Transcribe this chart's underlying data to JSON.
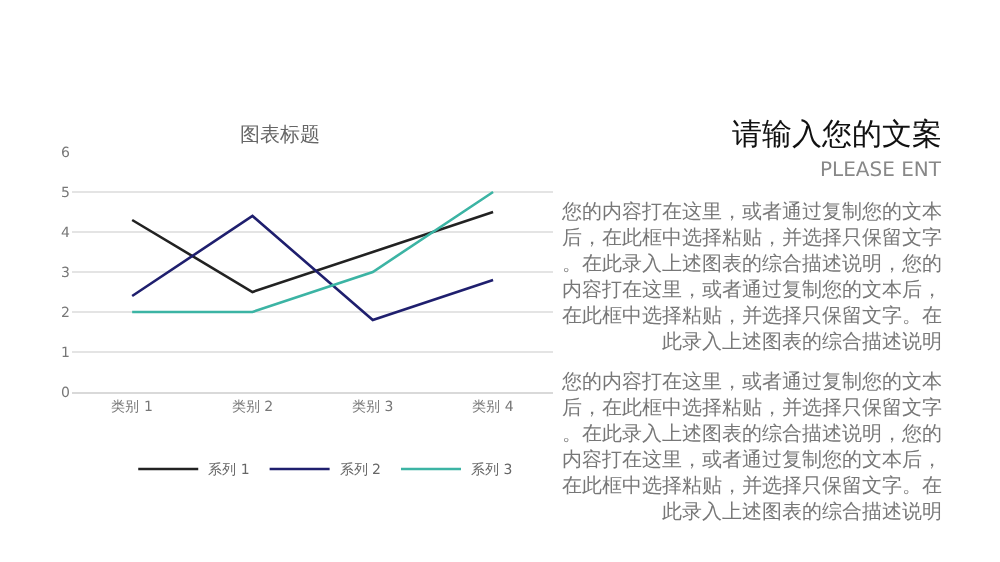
{
  "chart_data": {
    "type": "line",
    "title": "图表标题",
    "categories": [
      "类别 1",
      "类别 2",
      "类别 3",
      "类别 4"
    ],
    "series": [
      {
        "name": "系列 1",
        "color": "#222222",
        "values": [
          4.3,
          2.5,
          3.5,
          4.5
        ]
      },
      {
        "name": "系列 2",
        "color": "#1f1f6e",
        "values": [
          2.4,
          4.4,
          1.8,
          2.8
        ]
      },
      {
        "name": "系列 3",
        "color": "#3cb4a4",
        "values": [
          2.0,
          2.0,
          3.0,
          5.0
        ]
      }
    ],
    "ylim": [
      0,
      6
    ],
    "yticks": [
      0,
      1,
      2,
      3,
      4,
      5,
      6
    ],
    "grid": "y",
    "legend": "bottom",
    "marker": "none",
    "line_style": "solid",
    "annotations": [
      "请输入您的文案",
      "PLEASE ENT",
      "您的内容打在这里，或者通过复制您的文本后，在此框中选择粘贴，并选择只保留文字。在此录入上述图表的综合描述说明，您的内容打在这里，或者通过复制您的文本后，在此框中选择粘贴，并选择只保留文字。在此录入上述图表的综合描述说明",
      "您的内容打在这里，或者通过复制您的文本后，在此框中选择粘贴，并选择只保留文字。在此录入上述图表的综合描述说明，您的内容打在这里，或者通过复制您的文本后，在此框中选择粘贴，并选择只保留文字。在此录入上述图表的综合描述说明"
    ]
  }
}
